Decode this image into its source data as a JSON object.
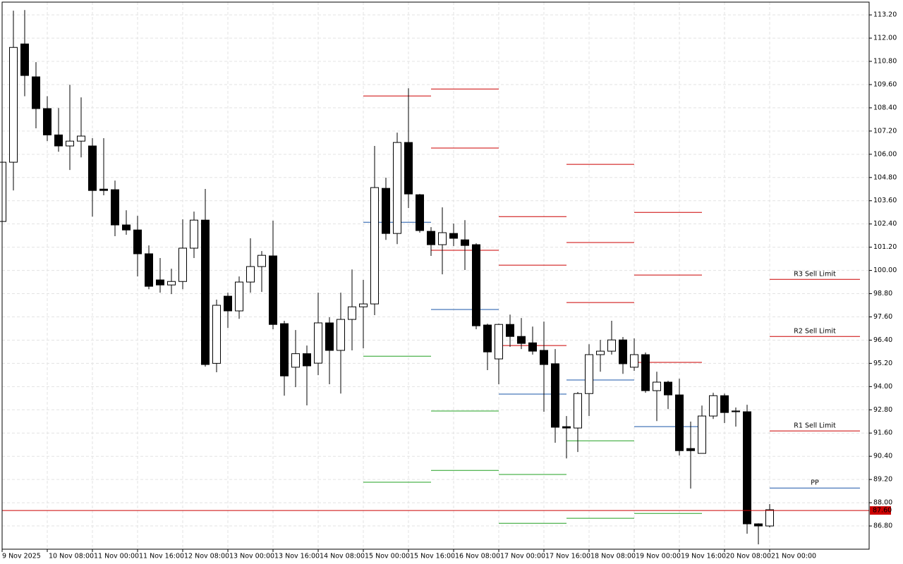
{
  "chart_data": {
    "type": "candlestick",
    "categories": [
      "9 Nov 2025",
      null,
      null,
      null,
      "10 Nov 08:00",
      null,
      null,
      null,
      "11 Nov 00:00",
      null,
      null,
      null,
      "11 Nov 16:00",
      null,
      null,
      null,
      "12 Nov 08:00",
      null,
      null,
      null,
      "13 Nov 00:00",
      null,
      null,
      null,
      "13 Nov 16:00",
      null,
      null,
      null,
      "14 Nov 08:00",
      null,
      null,
      null,
      "15 Nov 00:00",
      null,
      null,
      null,
      "15 Nov 16:00",
      null,
      null,
      null,
      "16 Nov 08:00",
      null,
      null,
      null,
      "17 Nov 00:00",
      null,
      null,
      null,
      "17 Nov 16:00",
      null,
      null,
      null,
      "18 Nov 08:00",
      null,
      null,
      null,
      "19 Nov 00:00",
      null,
      null,
      null,
      "19 Nov 16:00",
      null,
      null,
      null,
      "20 Nov 08:00",
      null,
      null,
      null,
      "21 Nov 00:00"
    ],
    "open": [
      102.53,
      105.59,
      111.7,
      110.0,
      108.36,
      107.0,
      106.43,
      106.68,
      106.43,
      104.2,
      104.17,
      102.35,
      102.09,
      100.86,
      99.51,
      99.25,
      99.43,
      101.15,
      102.6,
      95.2,
      98.67,
      97.91,
      99.4,
      100.2,
      100.75,
      97.25,
      95.0,
      95.7,
      95.21,
      97.29,
      95.87,
      97.47,
      98.12,
      98.27,
      104.24,
      101.91,
      106.61,
      103.91,
      102.02,
      101.33,
      101.91,
      101.58,
      101.33,
      97.18,
      95.43,
      97.21,
      96.59,
      96.26,
      95.87,
      95.18,
      91.93,
      91.86,
      93.64,
      95.65,
      95.83,
      96.41,
      95.0,
      95.65,
      93.79,
      94.23,
      93.57,
      90.8,
      90.55,
      92.48,
      93.53,
      92.74,
      92.7,
      86.91,
      86.8
    ],
    "high": [
      105.6,
      113.42,
      113.45,
      110.76,
      109.0,
      108.39,
      109.59,
      108.94,
      106.83,
      106.83,
      104.64,
      103.11,
      102.82,
      101.29,
      100.64,
      100.09,
      102.64,
      103.04,
      104.21,
      98.49,
      98.85,
      99.69,
      101.66,
      101.0,
      102.57,
      97.4,
      96.92,
      96.12,
      98.85,
      97.58,
      98.85,
      100.05,
      99.51,
      106.43,
      104.79,
      107.12,
      109.41,
      103.95,
      102.24,
      103.26,
      102.42,
      102.6,
      101.4,
      97.25,
      97.25,
      97.72,
      97.54,
      97.1,
      97.36,
      95.94,
      92.48,
      93.72,
      96.19,
      96.41,
      97.4,
      96.56,
      96.49,
      95.76,
      94.77,
      94.3,
      94.41,
      92.19,
      93.02,
      93.68,
      93.64,
      92.92,
      93.06,
      86.94,
      87.93
    ],
    "low": [
      102.5,
      104.13,
      109.0,
      107.34,
      106.68,
      106.13,
      105.19,
      105.84,
      102.78,
      103.88,
      101.77,
      101.84,
      99.69,
      99.03,
      98.85,
      98.78,
      99.03,
      100.64,
      95.03,
      94.74,
      97.03,
      97.5,
      98.85,
      98.89,
      96.96,
      93.53,
      93.97,
      93.03,
      94.59,
      94.12,
      93.64,
      95.87,
      95.98,
      97.69,
      101.58,
      101.36,
      103.22,
      101.95,
      100.75,
      99.8,
      101.26,
      100.02,
      96.96,
      94.85,
      94.12,
      96.05,
      95.94,
      95.65,
      92.7,
      91.1,
      90.29,
      90.62,
      92.48,
      94.77,
      95.65,
      94.66,
      94.81,
      93.68,
      92.22,
      92.84,
      90.44,
      88.73,
      90.55,
      92.33,
      92.12,
      91.93,
      86.4,
      85.85,
      86.73
    ],
    "close": [
      105.59,
      111.52,
      110.07,
      108.36,
      107.0,
      106.43,
      106.68,
      106.94,
      104.13,
      104.13,
      102.35,
      102.09,
      100.86,
      99.18,
      99.25,
      99.43,
      101.15,
      102.6,
      95.14,
      98.2,
      97.91,
      99.4,
      100.2,
      100.78,
      97.21,
      94.55,
      95.7,
      95.07,
      97.29,
      95.87,
      97.47,
      98.12,
      98.27,
      104.28,
      101.91,
      106.61,
      103.95,
      102.06,
      101.33,
      101.95,
      101.66,
      101.29,
      97.14,
      95.79,
      97.21,
      96.59,
      96.23,
      95.83,
      95.14,
      91.9,
      91.86,
      93.64,
      95.65,
      95.83,
      96.41,
      95.18,
      95.65,
      93.79,
      94.23,
      93.57,
      90.69,
      90.69,
      92.48,
      93.53,
      92.66,
      92.7,
      86.91,
      86.8,
      87.64
    ],
    "up_color": "#ffffff",
    "down_color": "#000000",
    "ylim": [
      85.6,
      113.86
    ],
    "yticks": [
      {
        "value": 86.8,
        "label": "86.80"
      },
      {
        "value": 88,
        "label": "88.00"
      },
      {
        "value": 89.2,
        "label": "89.20"
      },
      {
        "value": 90.4,
        "label": "90.40"
      },
      {
        "value": 91.6,
        "label": "91.60"
      },
      {
        "value": 92.8,
        "label": "92.80"
      },
      {
        "value": 94,
        "label": "94.00"
      },
      {
        "value": 95.2,
        "label": "95.20"
      },
      {
        "value": 96.4,
        "label": "96.40"
      },
      {
        "value": 97.6,
        "label": "97.60"
      },
      {
        "value": 98.8,
        "label": "98.80"
      },
      {
        "value": 100,
        "label": "100.00"
      },
      {
        "value": 101.2,
        "label": "101.20"
      },
      {
        "value": 102.4,
        "label": "102.40"
      },
      {
        "value": 103.6,
        "label": "103.60"
      },
      {
        "value": 104.8,
        "label": "104.80"
      },
      {
        "value": 106,
        "label": "106.00"
      },
      {
        "value": 107.2,
        "label": "107.20"
      },
      {
        "value": 108.4,
        "label": "108.40"
      },
      {
        "value": 109.6,
        "label": "109.60"
      },
      {
        "value": 110.8,
        "label": "110.80"
      },
      {
        "value": 112,
        "label": "112.00"
      },
      {
        "value": 113.2,
        "label": "113.20"
      }
    ],
    "grid": true,
    "level_colors": {
      "resistance": "#cc0000",
      "pivot": "#1a56a8",
      "support": "#22a022"
    },
    "pivot_days": [
      {
        "levels": [
          {
            "kind": "resistance",
            "value": 109.01
          },
          {
            "kind": "pivot",
            "value": 102.49
          },
          {
            "kind": "support",
            "value": 95.57
          },
          {
            "kind": "support",
            "value": 89.06
          }
        ]
      },
      {
        "levels": [
          {
            "kind": "resistance",
            "value": 109.37
          },
          {
            "kind": "resistance",
            "value": 106.32
          },
          {
            "kind": "resistance",
            "value": 101.04
          },
          {
            "kind": "pivot",
            "value": 97.98
          },
          {
            "kind": "support",
            "value": 92.74
          },
          {
            "kind": "support",
            "value": 89.67
          }
        ]
      },
      {
        "levels": [
          {
            "kind": "resistance",
            "value": 102.78
          },
          {
            "kind": "resistance",
            "value": 100.27
          },
          {
            "kind": "resistance",
            "value": 96.12
          },
          {
            "kind": "pivot",
            "value": 93.61
          },
          {
            "kind": "support",
            "value": 89.46
          },
          {
            "kind": "support",
            "value": 86.94
          }
        ]
      },
      {
        "levels": [
          {
            "kind": "resistance",
            "value": 105.48
          },
          {
            "kind": "resistance",
            "value": 101.44
          },
          {
            "kind": "resistance",
            "value": 98.34
          },
          {
            "kind": "pivot",
            "value": 94.34
          },
          {
            "kind": "support",
            "value": 91.2
          },
          {
            "kind": "support",
            "value": 87.2
          }
        ]
      },
      {
        "levels": [
          {
            "kind": "resistance",
            "value": 103.0
          },
          {
            "kind": "resistance",
            "value": 99.76
          },
          {
            "kind": "resistance",
            "value": 95.25
          },
          {
            "kind": "pivot",
            "value": 91.93
          },
          {
            "kind": "support",
            "value": 87.45
          }
        ]
      },
      {
        "levels": [
          {
            "kind": "resistance",
            "value": 99.54,
            "label": "R3 Sell Limit"
          },
          {
            "kind": "resistance",
            "value": 96.59,
            "label": "R2 Sell Limit"
          },
          {
            "kind": "resistance",
            "value": 91.71,
            "label": "R1 Sell Limit"
          },
          {
            "kind": "pivot",
            "value": 88.76,
            "label": "PP"
          }
        ]
      }
    ],
    "last_price": 87.6,
    "last_price_label": "87.60",
    "last_price_color": "#cc0000"
  }
}
